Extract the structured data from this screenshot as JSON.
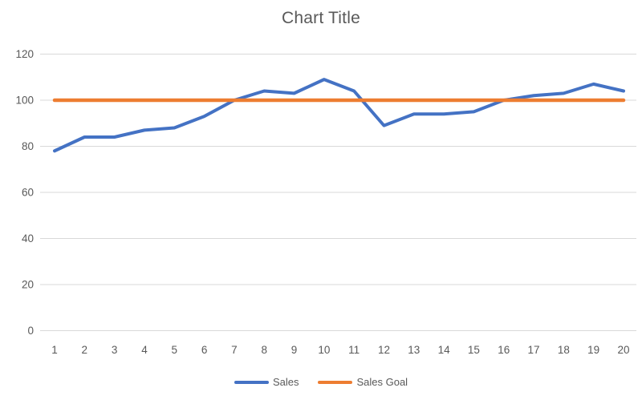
{
  "chart": {
    "title": "Chart Title",
    "colors": {
      "sales": "#4472C4",
      "sales_goal": "#ED7D31",
      "gridline": "#D9D9D9",
      "axis_text": "#595959",
      "title_text": "#595959",
      "background": "#FFFFFF"
    }
  },
  "chart_data": {
    "type": "line",
    "title": "Chart Title",
    "categories": [
      1,
      2,
      3,
      4,
      5,
      6,
      7,
      8,
      9,
      10,
      11,
      12,
      13,
      14,
      15,
      16,
      17,
      18,
      19,
      20
    ],
    "series": [
      {
        "name": "Sales",
        "color": "#4472C4",
        "stroke_width": 4,
        "values": [
          78,
          84,
          84,
          87,
          88,
          93,
          100,
          104,
          103,
          109,
          104,
          89,
          94,
          94,
          95,
          100,
          102,
          103,
          107,
          104
        ]
      },
      {
        "name": "Sales Goal",
        "color": "#ED7D31",
        "stroke_width": 4.5,
        "values": [
          100,
          100,
          100,
          100,
          100,
          100,
          100,
          100,
          100,
          100,
          100,
          100,
          100,
          100,
          100,
          100,
          100,
          100,
          100,
          100
        ]
      }
    ],
    "xlabel": "",
    "ylabel": "",
    "ylim": [
      0,
      120
    ],
    "yticks": [
      0,
      20,
      40,
      60,
      80,
      100,
      120
    ],
    "grid": "horizontal",
    "legend_position": "bottom"
  }
}
